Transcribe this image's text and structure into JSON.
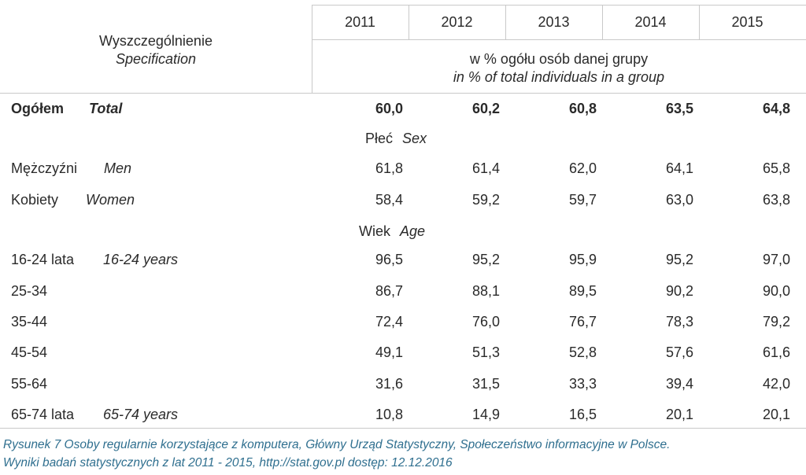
{
  "header": {
    "spec_pl": "Wyszczególnienie",
    "spec_en": "Specification",
    "years": [
      "2011",
      "2012",
      "2013",
      "2014",
      "2015"
    ],
    "unit_pl": "w % ogółu osób danej grupy",
    "unit_en": "in % of total individuals in a group"
  },
  "total": {
    "pl": "Ogółem",
    "en": "Total",
    "values": [
      "60,0",
      "60,2",
      "60,8",
      "63,5",
      "64,8"
    ]
  },
  "section_sex": {
    "pl": "Płeć",
    "en": "Sex"
  },
  "sex_rows": [
    {
      "pl": "Mężczyźni",
      "en": "Men",
      "values": [
        "61,8",
        "61,4",
        "62,0",
        "64,1",
        "65,8"
      ]
    },
    {
      "pl": "Kobiety",
      "en": "Women",
      "values": [
        "58,4",
        "59,2",
        "59,7",
        "63,0",
        "63,8"
      ]
    }
  ],
  "section_age": {
    "pl": "Wiek",
    "en": "Age"
  },
  "age_rows": [
    {
      "pl": "16-24 lata",
      "en": "16-24 years",
      "values": [
        "96,5",
        "95,2",
        "95,9",
        "95,2",
        "97,0"
      ]
    },
    {
      "pl": "25-34",
      "en": "",
      "values": [
        "86,7",
        "88,1",
        "89,5",
        "90,2",
        "90,0"
      ]
    },
    {
      "pl": "35-44",
      "en": "",
      "values": [
        "72,4",
        "76,0",
        "76,7",
        "78,3",
        "79,2"
      ]
    },
    {
      "pl": "45-54",
      "en": "",
      "values": [
        "49,1",
        "51,3",
        "52,8",
        "57,6",
        "61,6"
      ]
    },
    {
      "pl": "55-64",
      "en": "",
      "values": [
        "31,6",
        "31,5",
        "33,3",
        "39,4",
        "42,0"
      ]
    },
    {
      "pl": "65-74 lata",
      "en": "65-74 years",
      "values": [
        "10,8",
        "14,9",
        "16,5",
        "20,1",
        "20,1"
      ]
    }
  ],
  "caption": {
    "line1": "Rysunek 7 Osoby regularnie korzystające z komputera, Główny Urząd Statystyczny, Społeczeństwo informacyjne w Polsce.",
    "line2": "Wyniki badań statystycznych z lat 2011 - 2015, http://stat.gov.pl dostęp: 12.12.2016"
  }
}
